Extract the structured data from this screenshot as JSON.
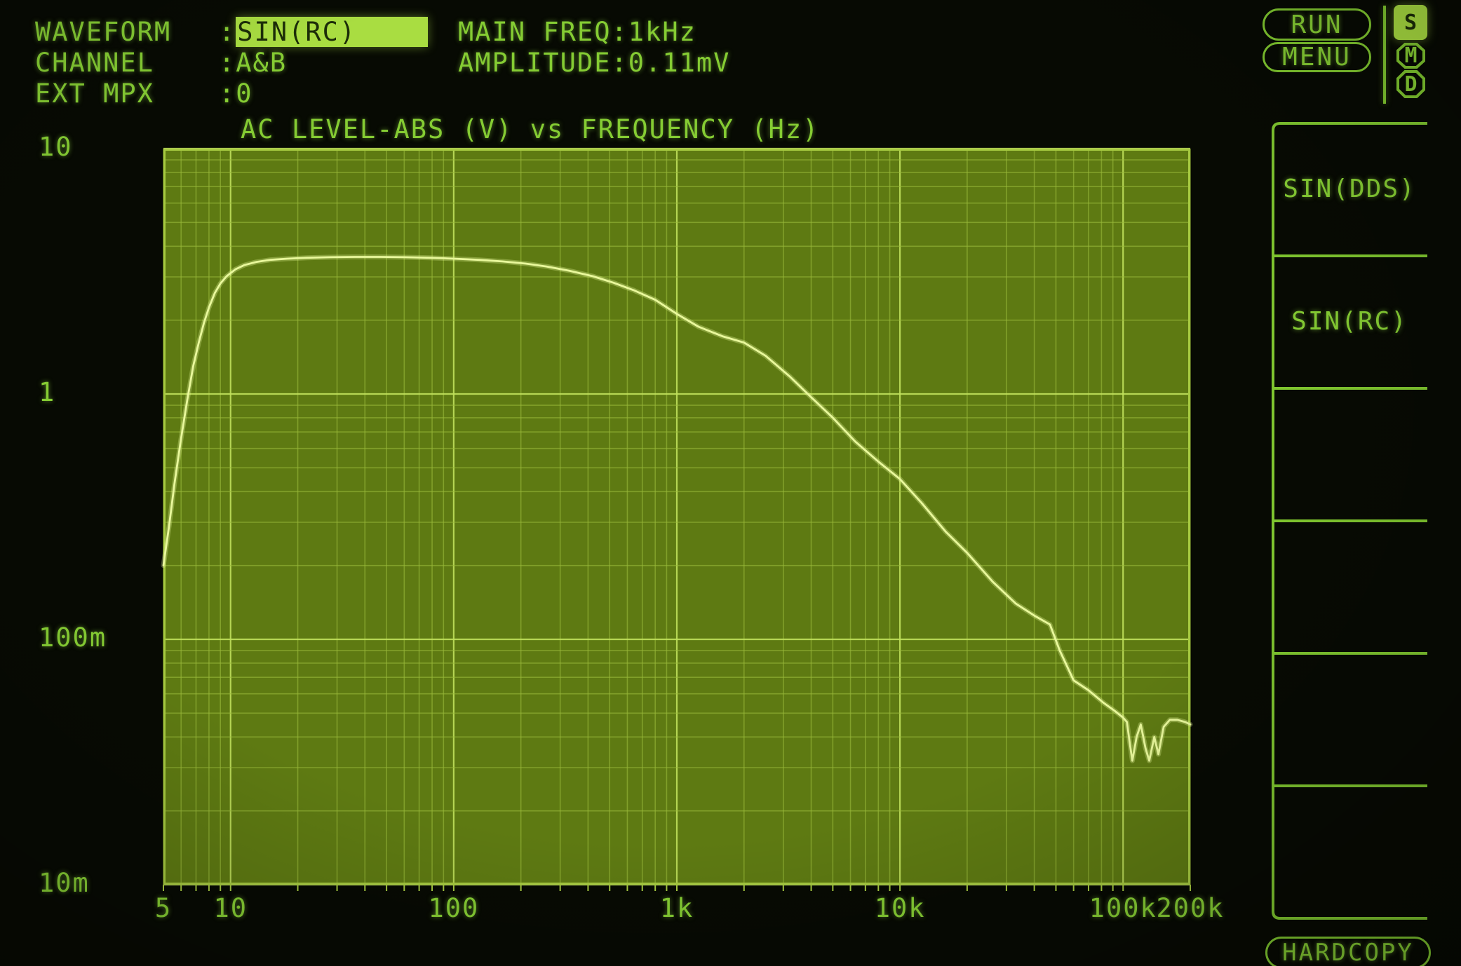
{
  "colors": {
    "screen_bg": "#070a03",
    "text": "#85cc33",
    "highlight_bg": "#a9dd41",
    "highlight_text": "#1c2d08",
    "plot_bg": "#5e7a12",
    "grid_minor": "#9ab93a",
    "grid_major": "#c0e05c",
    "plot_border": "#a6ca40",
    "trace": "#e9f89c",
    "pill_border": "#7fc62f"
  },
  "status": {
    "colon": ":",
    "rows": [
      {
        "label": "WAVEFORM",
        "value": "SIN(RC)",
        "highlighted": true
      },
      {
        "label": "CHANNEL",
        "value": "A&B",
        "highlighted": false
      },
      {
        "label": "EXT MPX",
        "value": "0",
        "highlighted": false
      }
    ]
  },
  "readouts": {
    "rows": [
      {
        "label": "MAIN FREQ",
        "value": "1kHz"
      },
      {
        "label": "AMPLITUDE",
        "value": "0.11mV"
      }
    ]
  },
  "top_buttons": {
    "run": "RUN",
    "menu": "MENU"
  },
  "mode_badges": [
    {
      "label": "S",
      "active": true
    },
    {
      "label": "M",
      "active": false
    },
    {
      "label": "D",
      "active": false
    }
  ],
  "softkeys": {
    "items": [
      "SIN(DDS)",
      "SIN(RC)",
      "",
      "",
      "",
      ""
    ],
    "hardcopy": "HARDCOPY"
  },
  "chart_data": {
    "type": "line",
    "title": "AC LEVEL-ABS (V) vs FREQUENCY (Hz)",
    "xlabel": "FREQUENCY (Hz)",
    "ylabel": "AC LEVEL-ABS (V)",
    "x_axis": {
      "scale": "log",
      "min": 5,
      "max": 200000,
      "unit": "Hz",
      "ticks": [
        {
          "f": 5,
          "label": "5"
        },
        {
          "f": 10,
          "label": "10"
        },
        {
          "f": 100,
          "label": "100"
        },
        {
          "f": 1000,
          "label": "1k"
        },
        {
          "f": 10000,
          "label": "10k"
        },
        {
          "f": 100000,
          "label": "100k"
        },
        {
          "f": 200000,
          "label": "200k"
        }
      ]
    },
    "y_axis": {
      "scale": "log",
      "min": 0.01,
      "max": 10,
      "unit": "V",
      "ticks": [
        {
          "v": 10,
          "label": "10"
        },
        {
          "v": 1,
          "label": "1"
        },
        {
          "v": 0.1,
          "label": "100m"
        },
        {
          "v": 0.01,
          "label": "10m"
        }
      ]
    },
    "grid": true,
    "series": [
      {
        "name": "AC LEVEL-ABS sweep",
        "points": [
          [
            5,
            0.2
          ],
          [
            5.3,
            0.29
          ],
          [
            5.6,
            0.43
          ],
          [
            6,
            0.66
          ],
          [
            6.4,
            0.95
          ],
          [
            6.8,
            1.3
          ],
          [
            7.2,
            1.62
          ],
          [
            7.6,
            1.95
          ],
          [
            8,
            2.25
          ],
          [
            8.5,
            2.58
          ],
          [
            9,
            2.82
          ],
          [
            9.6,
            3.02
          ],
          [
            10.5,
            3.22
          ],
          [
            11.5,
            3.35
          ],
          [
            13,
            3.45
          ],
          [
            15,
            3.52
          ],
          [
            18,
            3.56
          ],
          [
            22,
            3.59
          ],
          [
            28,
            3.61
          ],
          [
            36,
            3.62
          ],
          [
            47,
            3.62
          ],
          [
            60,
            3.61
          ],
          [
            78,
            3.59
          ],
          [
            100,
            3.56
          ],
          [
            130,
            3.52
          ],
          [
            165,
            3.47
          ],
          [
            210,
            3.4
          ],
          [
            260,
            3.31
          ],
          [
            330,
            3.18
          ],
          [
            420,
            3.02
          ],
          [
            520,
            2.84
          ],
          [
            640,
            2.65
          ],
          [
            800,
            2.42
          ],
          [
            1000,
            2.12
          ],
          [
            1250,
            1.88
          ],
          [
            1600,
            1.72
          ],
          [
            2000,
            1.62
          ],
          [
            2500,
            1.43
          ],
          [
            3200,
            1.18
          ],
          [
            4000,
            0.97
          ],
          [
            5000,
            0.8
          ],
          [
            6300,
            0.64
          ],
          [
            8000,
            0.53
          ],
          [
            10000,
            0.45
          ],
          [
            12500,
            0.36
          ],
          [
            16000,
            0.275
          ],
          [
            20000,
            0.225
          ],
          [
            26000,
            0.172
          ],
          [
            33000,
            0.14
          ],
          [
            40000,
            0.125
          ],
          [
            47000,
            0.115
          ],
          [
            52000,
            0.09
          ],
          [
            60000,
            0.068
          ],
          [
            70000,
            0.062
          ],
          [
            82000,
            0.055
          ],
          [
            92000,
            0.051
          ],
          [
            100000,
            0.048
          ],
          [
            104000,
            0.046
          ],
          [
            107000,
            0.038
          ],
          [
            110000,
            0.032
          ],
          [
            115000,
            0.04
          ],
          [
            120000,
            0.045
          ],
          [
            126000,
            0.036
          ],
          [
            131000,
            0.032
          ],
          [
            138000,
            0.04
          ],
          [
            144000,
            0.034
          ],
          [
            152000,
            0.044
          ],
          [
            162000,
            0.047
          ],
          [
            175000,
            0.047
          ],
          [
            190000,
            0.046
          ],
          [
            200000,
            0.045
          ]
        ]
      }
    ]
  }
}
